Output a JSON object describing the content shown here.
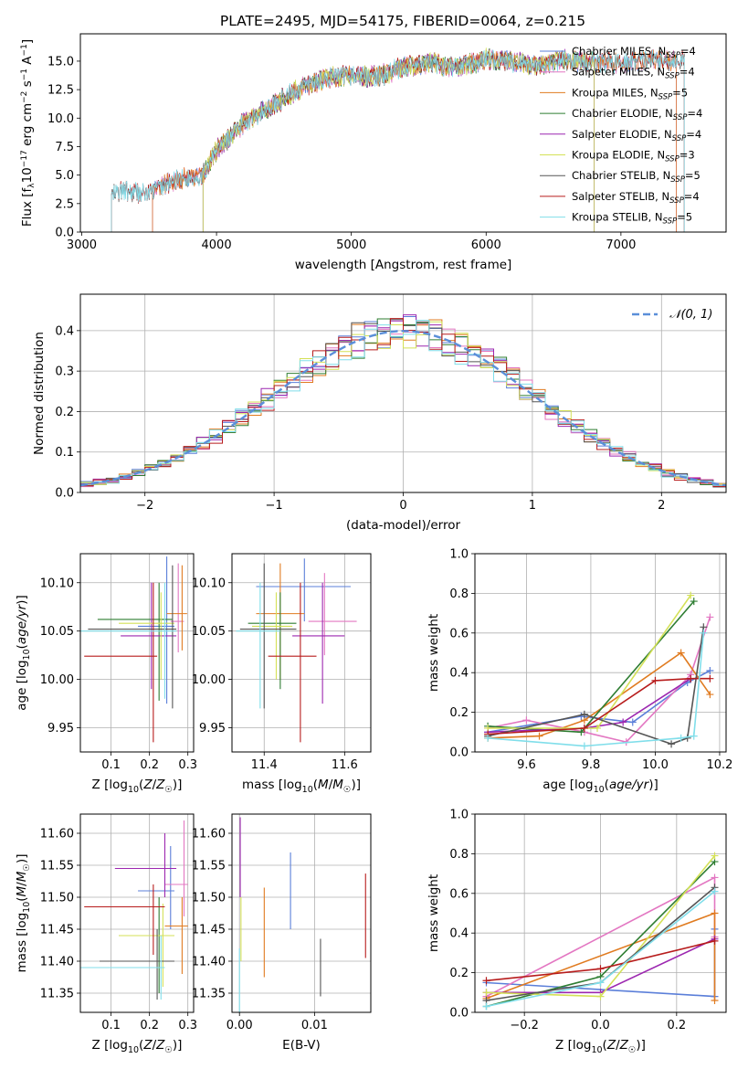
{
  "figure": {
    "title": "PLATE=2495, MJD=54175, FIBERID=0064, z=0.215"
  },
  "colors": {
    "Chabrier MILES": "#5b7fd9",
    "Salpeter MILES": "#e377c2",
    "Kroupa MILES": "#e07b20",
    "Chabrier ELODIE": "#2e7d32",
    "Salpeter ELODIE": "#9c27b0",
    "Kroupa ELODIE": "#d4e157",
    "Chabrier STELIB": "#555555",
    "Salpeter STELIB": "#b71c1c",
    "Kroupa STELIB": "#80deea"
  },
  "chart_data": [
    {
      "type": "line",
      "title": "PLATE=2495, MJD=54175, FIBERID=0064, z=0.215",
      "xlabel": "wavelength [Angstrom, rest frame]",
      "ylabel": "Flux [f_λ 10^-17 erg cm^-2 s^-1 A^-1]",
      "xlim": [
        2990,
        7780
      ],
      "ylim": [
        0,
        17.4
      ],
      "xticks": [
        "3000",
        "4000",
        "5000",
        "6000",
        "7000"
      ],
      "yticks": [
        "0.0",
        "2.5",
        "5.0",
        "7.5",
        "10.0",
        "12.5",
        "15.0"
      ],
      "grid": false,
      "legend_position": "top-right",
      "legend": [
        {
          "name": "Chabrier MILES, N_SSP=4",
          "base": "Chabrier MILES, N",
          "sub": "SSP",
          "tail": "=4"
        },
        {
          "name": "Salpeter MILES, N_SSP=4",
          "base": "Salpeter MILES, N",
          "sub": "SSP",
          "tail": "=4"
        },
        {
          "name": "Kroupa MILES, N_SSP=5",
          "base": "Kroupa MILES, N",
          "sub": "SSP",
          "tail": "=5"
        },
        {
          "name": "Chabrier ELODIE, N_SSP=4",
          "base": "Chabrier ELODIE, N",
          "sub": "SSP",
          "tail": "=4"
        },
        {
          "name": "Salpeter ELODIE, N_SSP=4",
          "base": "Salpeter ELODIE, N",
          "sub": "SSP",
          "tail": "=4"
        },
        {
          "name": "Kroupa ELODIE, N_SSP=3",
          "base": "Kroupa ELODIE, N",
          "sub": "SSP",
          "tail": "=3"
        },
        {
          "name": "Chabrier STELIB, N_SSP=5",
          "base": "Chabrier STELIB, N",
          "sub": "SSP",
          "tail": "=5"
        },
        {
          "name": "Salpeter STELIB, N_SSP=4",
          "base": "Salpeter STELIB, N",
          "sub": "SSP",
          "tail": "=4"
        },
        {
          "name": "Kroupa STELIB, N_SSP=5",
          "base": "Kroupa STELIB, N",
          "sub": "SSP",
          "tail": "=5"
        }
      ],
      "series_wavelength_ranges": [
        {
          "name": "Chabrier MILES",
          "x": [
            3525,
            7410
          ]
        },
        {
          "name": "Salpeter MILES",
          "x": [
            3525,
            7410
          ]
        },
        {
          "name": "Kroupa MILES",
          "x": [
            3525,
            7410
          ]
        },
        {
          "name": "Chabrier ELODIE",
          "x": [
            3900,
            6800
          ]
        },
        {
          "name": "Salpeter ELODIE",
          "x": [
            3900,
            6800
          ]
        },
        {
          "name": "Kroupa ELODIE",
          "x": [
            3900,
            6800
          ]
        },
        {
          "name": "Chabrier STELIB",
          "x": [
            3220,
            7470
          ]
        },
        {
          "name": "Salpeter STELIB",
          "x": [
            3220,
            7470
          ]
        },
        {
          "name": "Kroupa STELIB",
          "x": [
            3220,
            7470
          ]
        }
      ],
      "continuum": {
        "x": [
          3220,
          3300,
          3500,
          3700,
          3900,
          4000,
          4200,
          4400,
          4600,
          4800,
          5000,
          5200,
          5400,
          5600,
          5800,
          6000,
          6200,
          6400,
          6600,
          6800,
          7000,
          7200,
          7470
        ],
        "y": [
          3.2,
          3.6,
          3.4,
          4.6,
          5.0,
          7.2,
          9.6,
          11.0,
          12.5,
          13.5,
          13.8,
          13.6,
          14.6,
          14.8,
          14.4,
          15.2,
          14.9,
          14.6,
          15.1,
          14.9,
          14.8,
          15.1,
          15.0
        ]
      }
    },
    {
      "type": "line",
      "xlabel": "(data-model)/error",
      "ylabel": "Normed distribution",
      "xlim": [
        -2.5,
        2.5
      ],
      "ylim": [
        0,
        0.49
      ],
      "xticks": [
        "−2",
        "−1",
        "0",
        "1",
        "2"
      ],
      "yticks": [
        "0.0",
        "0.1",
        "0.2",
        "0.3",
        "0.4"
      ],
      "grid": true,
      "legend_position": "top-right",
      "legend": [
        {
          "name": "𝒩(0, 1)"
        }
      ],
      "reference": {
        "name": "𝒩(0, 1)",
        "style": "dashed",
        "mean": 0,
        "sigma": 1
      },
      "bins": {
        "start": -2.5,
        "width": 0.1,
        "count": 50
      },
      "note": "nine step histograms following the normal curve"
    },
    {
      "type": "scatter",
      "xlabel": "Z [log10(Z/Z☉)]",
      "ylabel": "age  [log10(age/yr)]",
      "xlim": [
        0.02,
        0.315
      ],
      "ylim": [
        9.925,
        10.13
      ],
      "xticks": [
        "0.1",
        "0.2",
        "0.3"
      ],
      "yticks": [
        "9.95",
        "10.00",
        "10.05",
        "10.10"
      ],
      "grid": true,
      "points": [
        {
          "series": "Chabrier MILES",
          "x": 0.245,
          "y": 10.055,
          "xerr": [
            0.17,
            0.265
          ],
          "yerr": [
            9.975,
            10.127
          ]
        },
        {
          "series": "Salpeter MILES",
          "x": 0.275,
          "y": 10.06,
          "xerr": [
            0.255,
            0.29
          ],
          "yerr": [
            10.028,
            10.12
          ]
        },
        {
          "series": "Kroupa MILES",
          "x": 0.285,
          "y": 10.068,
          "xerr": [
            0.245,
            0.298
          ],
          "yerr": [
            10.03,
            10.118
          ]
        },
        {
          "series": "Chabrier ELODIE",
          "x": 0.225,
          "y": 10.062,
          "xerr": [
            0.065,
            0.26
          ],
          "yerr": [
            9.978,
            10.1
          ]
        },
        {
          "series": "Salpeter ELODIE",
          "x": 0.205,
          "y": 10.045,
          "xerr": [
            0.125,
            0.27
          ],
          "yerr": [
            9.99,
            10.1
          ]
        },
        {
          "series": "Kroupa ELODIE",
          "x": 0.23,
          "y": 10.058,
          "xerr": [
            0.12,
            0.265
          ],
          "yerr": [
            10.0,
            10.09
          ]
        },
        {
          "series": "Chabrier STELIB",
          "x": 0.26,
          "y": 10.052,
          "xerr": [
            0.04,
            0.27
          ],
          "yerr": [
            9.97,
            10.118
          ]
        },
        {
          "series": "Salpeter STELIB",
          "x": 0.21,
          "y": 10.024,
          "xerr": [
            0.03,
            0.22
          ],
          "yerr": [
            9.935,
            10.1
          ]
        },
        {
          "series": "Kroupa STELIB",
          "x": 0.24,
          "y": 10.05,
          "xerr": [
            0.02,
            0.27
          ],
          "yerr": [
            9.98,
            10.1
          ]
        }
      ]
    },
    {
      "type": "scatter",
      "xlabel": "mass [log10(M/M☉)]",
      "ylabel": "",
      "xlim": [
        11.32,
        11.665
      ],
      "ylim": [
        9.925,
        10.13
      ],
      "xticks": [
        "11.4",
        "11.6"
      ],
      "yticks": [
        "9.95",
        "10.00",
        "10.05",
        "10.10"
      ],
      "grid": true,
      "points": [
        {
          "series": "Chabrier MILES",
          "x": 11.5,
          "y": 10.096,
          "xerr": [
            11.38,
            11.615
          ],
          "yerr": [
            10.06,
            10.125
          ]
        },
        {
          "series": "Salpeter MILES",
          "x": 11.55,
          "y": 10.06,
          "xerr": [
            11.51,
            11.63
          ],
          "yerr": [
            10.025,
            10.11
          ]
        },
        {
          "series": "Kroupa MILES",
          "x": 11.44,
          "y": 10.068,
          "xerr": [
            11.38,
            11.5
          ],
          "yerr": [
            10.0,
            10.12
          ]
        },
        {
          "series": "Chabrier ELODIE",
          "x": 11.44,
          "y": 10.058,
          "xerr": [
            11.36,
            11.48
          ],
          "yerr": [
            9.99,
            10.09
          ]
        },
        {
          "series": "Salpeter ELODIE",
          "x": 11.545,
          "y": 10.045,
          "xerr": [
            11.47,
            11.6
          ],
          "yerr": [
            9.975,
            10.1
          ]
        },
        {
          "series": "Kroupa ELODIE",
          "x": 11.43,
          "y": 10.055,
          "xerr": [
            11.37,
            11.47
          ],
          "yerr": [
            10.0,
            10.09
          ]
        },
        {
          "series": "Chabrier STELIB",
          "x": 11.4,
          "y": 10.052,
          "xerr": [
            11.34,
            11.48
          ],
          "yerr": [
            9.97,
            10.12
          ]
        },
        {
          "series": "Salpeter STELIB",
          "x": 11.49,
          "y": 10.024,
          "xerr": [
            11.41,
            11.53
          ],
          "yerr": [
            9.935,
            10.1
          ]
        },
        {
          "series": "Kroupa STELIB",
          "x": 11.39,
          "y": 10.05,
          "xerr": [
            11.33,
            11.44
          ],
          "yerr": [
            9.97,
            10.1
          ]
        }
      ]
    },
    {
      "type": "line",
      "xlabel": "age  [log10(age/yr)]",
      "ylabel": "mass weight",
      "xlim": [
        9.44,
        10.22
      ],
      "ylim": [
        0,
        1
      ],
      "xticks": [
        "9.6",
        "9.8",
        "10.0",
        "10.2"
      ],
      "yticks": [
        "0.0",
        "0.2",
        "0.4",
        "0.6",
        "0.8",
        "1.0"
      ],
      "grid": true,
      "series": [
        {
          "name": "Chabrier MILES",
          "x": [
            9.48,
            9.77,
            9.93,
            10.1,
            10.17
          ],
          "y": [
            0.1,
            0.18,
            0.15,
            0.35,
            0.41
          ]
        },
        {
          "name": "Salpeter MILES",
          "x": [
            9.48,
            9.6,
            9.78,
            9.91,
            10.11,
            10.17
          ],
          "y": [
            0.12,
            0.16,
            0.1,
            0.05,
            0.39,
            0.68
          ]
        },
        {
          "name": "Kroupa MILES",
          "x": [
            9.48,
            9.64,
            9.78,
            10.08,
            10.17
          ],
          "y": [
            0.07,
            0.08,
            0.16,
            0.5,
            0.29
          ]
        },
        {
          "name": "Chabrier ELODIE",
          "x": [
            9.48,
            9.77,
            10.12
          ],
          "y": [
            0.13,
            0.1,
            0.76
          ]
        },
        {
          "name": "Salpeter ELODIE",
          "x": [
            9.48,
            9.78,
            9.9,
            10.11
          ],
          "y": [
            0.1,
            0.12,
            0.15,
            0.37
          ]
        },
        {
          "name": "Kroupa ELODIE",
          "x": [
            9.48,
            9.82,
            10.11
          ],
          "y": [
            0.12,
            0.12,
            0.79
          ]
        },
        {
          "name": "Chabrier STELIB",
          "x": [
            9.48,
            9.78,
            10.05,
            10.1,
            10.15
          ],
          "y": [
            0.08,
            0.19,
            0.04,
            0.07,
            0.63
          ]
        },
        {
          "name": "Salpeter STELIB",
          "x": [
            9.48,
            9.78,
            10.0,
            10.11,
            10.17
          ],
          "y": [
            0.09,
            0.12,
            0.36,
            0.37,
            0.37
          ]
        },
        {
          "name": "Kroupa STELIB",
          "x": [
            9.48,
            9.78,
            10.08,
            10.12,
            10.15
          ],
          "y": [
            0.07,
            0.03,
            0.07,
            0.08,
            0.6
          ]
        }
      ]
    },
    {
      "type": "scatter",
      "xlabel": "Z [log10(Z/Z☉)]",
      "ylabel": "mass [log10(M/M☉)]",
      "xlim": [
        0.02,
        0.315
      ],
      "ylim": [
        11.32,
        11.63
      ],
      "xticks": [
        "0.1",
        "0.2",
        "0.3"
      ],
      "yticks": [
        "11.35",
        "11.40",
        "11.45",
        "11.50",
        "11.55",
        "11.60"
      ],
      "grid": true,
      "points": [
        {
          "series": "Chabrier MILES",
          "x": 0.255,
          "y": 11.51,
          "xerr": [
            0.17,
            0.265
          ],
          "yerr": [
            11.45,
            11.58
          ]
        },
        {
          "series": "Salpeter MILES",
          "x": 0.29,
          "y": 11.52,
          "xerr": [
            0.24,
            0.3
          ],
          "yerr": [
            11.47,
            11.62
          ]
        },
        {
          "series": "Kroupa MILES",
          "x": 0.285,
          "y": 11.455,
          "xerr": [
            0.24,
            0.3
          ],
          "yerr": [
            11.38,
            11.5
          ]
        },
        {
          "series": "Chabrier ELODIE",
          "x": 0.225,
          "y": 11.44,
          "xerr": [
            0.12,
            0.265
          ],
          "yerr": [
            11.35,
            11.5
          ]
        },
        {
          "series": "Salpeter ELODIE",
          "x": 0.24,
          "y": 11.545,
          "xerr": [
            0.11,
            0.27
          ],
          "yerr": [
            11.5,
            11.6
          ]
        },
        {
          "series": "Kroupa ELODIE",
          "x": 0.235,
          "y": 11.44,
          "xerr": [
            0.12,
            0.265
          ],
          "yerr": [
            11.36,
            11.49
          ]
        },
        {
          "series": "Chabrier STELIB",
          "x": 0.22,
          "y": 11.4,
          "xerr": [
            0.07,
            0.265
          ],
          "yerr": [
            11.34,
            11.45
          ]
        },
        {
          "series": "Salpeter STELIB",
          "x": 0.21,
          "y": 11.485,
          "xerr": [
            0.03,
            0.24
          ],
          "yerr": [
            11.41,
            11.52
          ]
        },
        {
          "series": "Kroupa STELIB",
          "x": 0.23,
          "y": 11.39,
          "xerr": [
            0.02,
            0.24
          ],
          "yerr": [
            11.34,
            11.44
          ]
        }
      ]
    },
    {
      "type": "scatter",
      "xlabel": "E(B-V)",
      "ylabel": "",
      "xlim": [
        -0.001,
        0.0175
      ],
      "ylim": [
        11.32,
        11.63
      ],
      "xticks": [
        "0.00",
        "0.01"
      ],
      "yticks": [
        "11.35",
        "11.40",
        "11.45",
        "11.50",
        "11.55",
        "11.60"
      ],
      "grid": true,
      "points": [
        {
          "series": "Chabrier MILES",
          "x": 0.0068,
          "y": 11.5,
          "yerr": [
            11.45,
            11.57
          ]
        },
        {
          "series": "Kroupa MILES",
          "x": 0.0033,
          "y": 11.45,
          "yerr": [
            11.375,
            11.515
          ]
        },
        {
          "series": "Chabrier STELIB",
          "x": 0.0108,
          "y": 11.39,
          "yerr": [
            11.345,
            11.435
          ]
        },
        {
          "series": "Salpeter STELIB",
          "x": 0.0168,
          "y": 11.47,
          "yerr": [
            11.405,
            11.537
          ]
        },
        {
          "series": "Salpeter ELODIE",
          "x": 0.0001,
          "y": 11.56,
          "yerr": [
            11.5,
            11.625
          ]
        },
        {
          "series": "Kroupa ELODIE",
          "x": 0.0002,
          "y": 11.45,
          "yerr": [
            11.4,
            11.5
          ]
        },
        {
          "series": "Kroupa STELIB",
          "x": 0.0,
          "y": 11.38,
          "yerr": [
            11.32,
            11.42
          ]
        }
      ]
    },
    {
      "type": "line",
      "xlabel": "Z [log10(Z/Z☉)]",
      "ylabel": "mass weight",
      "xlim": [
        -0.33,
        0.33
      ],
      "ylim": [
        0,
        1
      ],
      "xticks": [
        "−0.2",
        "0.0",
        "0.2"
      ],
      "yticks": [
        "0.0",
        "0.2",
        "0.4",
        "0.6",
        "0.8",
        "1.0"
      ],
      "grid": true,
      "series": [
        {
          "name": "Chabrier MILES",
          "x": [
            -0.3,
            0.3,
            0.3
          ],
          "y": [
            0.15,
            0.08,
            0.42
          ]
        },
        {
          "name": "Salpeter MILES",
          "x": [
            -0.3,
            0.3,
            0.3
          ],
          "y": [
            0.08,
            0.68,
            0.38
          ]
        },
        {
          "name": "Kroupa MILES",
          "x": [
            -0.3,
            0.3,
            0.3
          ],
          "y": [
            0.07,
            0.5,
            0.06
          ]
        },
        {
          "name": "Chabrier ELODIE",
          "x": [
            -0.3,
            0.0,
            0.3
          ],
          "y": [
            0.03,
            0.18,
            0.76
          ]
        },
        {
          "name": "Salpeter ELODIE",
          "x": [
            -0.3,
            0.0,
            0.3
          ],
          "y": [
            0.1,
            0.1,
            0.37
          ]
        },
        {
          "name": "Kroupa ELODIE",
          "x": [
            -0.3,
            0.0,
            0.3
          ],
          "y": [
            0.1,
            0.08,
            0.79
          ]
        },
        {
          "name": "Chabrier STELIB",
          "x": [
            -0.3,
            0.0,
            0.3
          ],
          "y": [
            0.06,
            0.15,
            0.63
          ]
        },
        {
          "name": "Salpeter STELIB",
          "x": [
            -0.3,
            0.0,
            0.3
          ],
          "y": [
            0.16,
            0.22,
            0.36
          ]
        },
        {
          "name": "Kroupa STELIB",
          "x": [
            -0.3,
            0.0,
            0.3
          ],
          "y": [
            0.03,
            0.15,
            0.61
          ]
        }
      ]
    }
  ]
}
